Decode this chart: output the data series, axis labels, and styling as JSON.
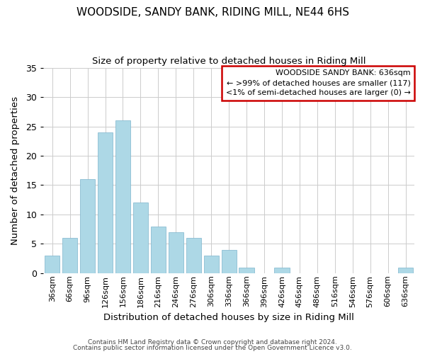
{
  "title": "WOODSIDE, SANDY BANK, RIDING MILL, NE44 6HS",
  "subtitle": "Size of property relative to detached houses in Riding Mill",
  "xlabel": "Distribution of detached houses by size in Riding Mill",
  "ylabel": "Number of detached properties",
  "bar_color": "#ADD8E6",
  "highlight_color": "#ADD8E6",
  "highlight_index": 20,
  "categories": [
    "36sqm",
    "66sqm",
    "96sqm",
    "126sqm",
    "156sqm",
    "186sqm",
    "216sqm",
    "246sqm",
    "276sqm",
    "306sqm",
    "336sqm",
    "366sqm",
    "396sqm",
    "426sqm",
    "456sqm",
    "486sqm",
    "516sqm",
    "546sqm",
    "576sqm",
    "606sqm",
    "636sqm"
  ],
  "values": [
    3,
    6,
    16,
    24,
    26,
    12,
    8,
    7,
    6,
    3,
    4,
    1,
    0,
    1,
    0,
    0,
    0,
    0,
    0,
    0,
    1
  ],
  "ylim": [
    0,
    35
  ],
  "yticks": [
    0,
    5,
    10,
    15,
    20,
    25,
    30,
    35
  ],
  "annotation_line1": "WOODSIDE SANDY BANK: 636sqm",
  "annotation_line2": "← >99% of detached houses are smaller (117)",
  "annotation_line3": "<1% of semi-detached houses are larger (0) →",
  "footer_line1": "Contains HM Land Registry data © Crown copyright and database right 2024.",
  "footer_line2": "Contains public sector information licensed under the Open Government Licence v3.0.",
  "box_edge_color": "#CC0000",
  "background_color": "#FFFFFF",
  "grid_color": "#CCCCCC"
}
